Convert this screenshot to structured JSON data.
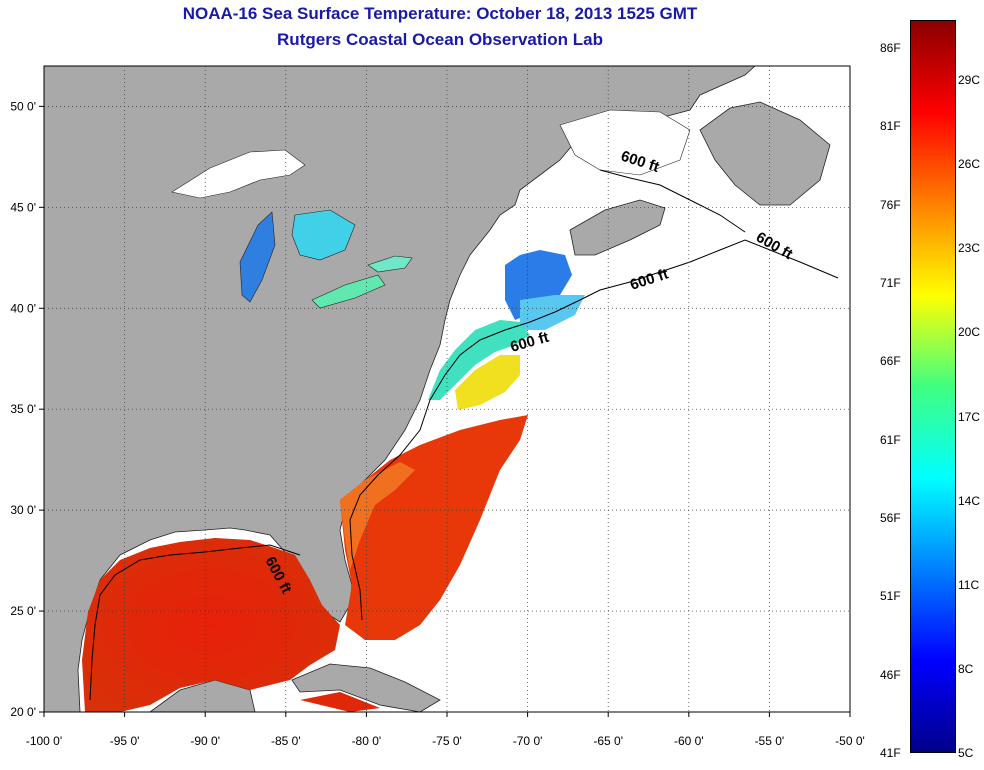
{
  "header": {
    "title": "NOAA-16 Sea Surface Temperature:  October 18, 2013 1525 GMT",
    "subtitle": "Rutgers Coastal Ocean Observation Lab"
  },
  "map": {
    "lon_range": [
      -100,
      -50
    ],
    "lat_range": [
      20,
      52
    ],
    "lon_ticks": [
      "-100 0'",
      "-95 0'",
      "-90 0'",
      "-85 0'",
      "-80 0'",
      "-75 0'",
      "-70 0'",
      "-65 0'",
      "-60 0'",
      "-55 0'",
      "-50 0'"
    ],
    "lat_ticks": [
      "20 0'",
      "25 0'",
      "30 0'",
      "35 0'",
      "40 0'",
      "45 0'",
      "50 0'"
    ],
    "contour_label": "600 ft",
    "colors": {
      "land": "#a9a9a9",
      "ocean_nodata": "#ffffff",
      "grid": "#333333"
    }
  },
  "colorbar": {
    "fahrenheit": [
      "86F",
      "81F",
      "76F",
      "71F",
      "66F",
      "61F",
      "56F",
      "51F",
      "46F",
      "41F"
    ],
    "celsius": [
      "29C",
      "26C",
      "23C",
      "20C",
      "17C",
      "14C",
      "11C",
      "8C",
      "5C"
    ],
    "gradient": [
      "#00008b",
      "#0000ff",
      "#0080ff",
      "#00ffff",
      "#40ff80",
      "#ffff00",
      "#ff8000",
      "#ff0000",
      "#8b0000"
    ]
  }
}
